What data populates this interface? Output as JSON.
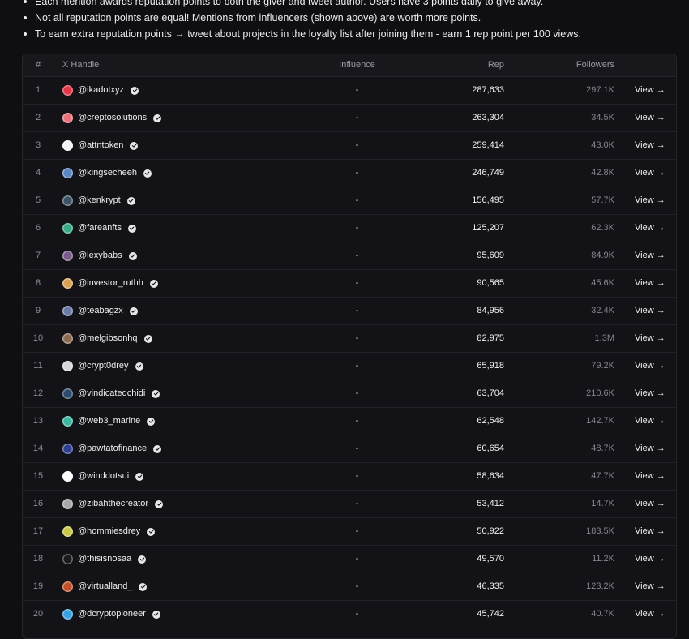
{
  "bullets": [
    "Each mention awards reputation points to both the giver and tweet author. Users have 3 points daily to give away.",
    "Not all reputation points are equal! Mentions from influencers (shown above) are worth more points.",
    "To earn extra reputation points → tweet about projects in the loyalty list after joining them - earn 1 rep point per 100 views."
  ],
  "table": {
    "headers": {
      "rank": "#",
      "handle": "X Handle",
      "influence": "Influence",
      "rep": "Rep",
      "followers": "Followers"
    },
    "view_label": "View →",
    "rows": [
      {
        "rank": "1",
        "handle": "@ikadotxyz",
        "influence": "-",
        "rep": "287,633",
        "followers": "297.1K",
        "avatar_color": "#e0384a"
      },
      {
        "rank": "2",
        "handle": "@creptosolutions",
        "influence": "-",
        "rep": "263,304",
        "followers": "34.5K",
        "avatar_color": "#e8727e"
      },
      {
        "rank": "3",
        "handle": "@attntoken",
        "influence": "-",
        "rep": "259,414",
        "followers": "43.0K",
        "avatar_color": "#f2f2f2"
      },
      {
        "rank": "4",
        "handle": "@kingsecheeh",
        "influence": "-",
        "rep": "246,749",
        "followers": "42.8K",
        "avatar_color": "#5b86c4"
      },
      {
        "rank": "5",
        "handle": "@kenkrypt",
        "influence": "-",
        "rep": "156,495",
        "followers": "57.7K",
        "avatar_color": "#3c5566"
      },
      {
        "rank": "6",
        "handle": "@fareanfts",
        "influence": "-",
        "rep": "125,207",
        "followers": "62.3K",
        "avatar_color": "#3ba888"
      },
      {
        "rank": "7",
        "handle": "@lexybabs",
        "influence": "-",
        "rep": "95,609",
        "followers": "84.9K",
        "avatar_color": "#7a5c8a"
      },
      {
        "rank": "8",
        "handle": "@investor_ruthh",
        "influence": "-",
        "rep": "90,565",
        "followers": "45.6K",
        "avatar_color": "#d9a15a"
      },
      {
        "rank": "9",
        "handle": "@teabagzx",
        "influence": "-",
        "rep": "84,956",
        "followers": "32.4K",
        "avatar_color": "#6b7da6"
      },
      {
        "rank": "10",
        "handle": "@melgibsonhq",
        "influence": "-",
        "rep": "82,975",
        "followers": "1.3M",
        "avatar_color": "#8a6a55"
      },
      {
        "rank": "11",
        "handle": "@crypt0drey",
        "influence": "-",
        "rep": "65,918",
        "followers": "79.2K",
        "avatar_color": "#d8d8d8"
      },
      {
        "rank": "12",
        "handle": "@vindicatedchidi",
        "influence": "-",
        "rep": "63,704",
        "followers": "210.6K",
        "avatar_color": "#2b4a6b"
      },
      {
        "rank": "13",
        "handle": "@web3_marine",
        "influence": "-",
        "rep": "62,548",
        "followers": "142.7K",
        "avatar_color": "#3fb6a0"
      },
      {
        "rank": "14",
        "handle": "@pawtatofinance",
        "influence": "-",
        "rep": "60,654",
        "followers": "48.7K",
        "avatar_color": "#2e3f8f"
      },
      {
        "rank": "15",
        "handle": "@winddotsui",
        "influence": "-",
        "rep": "58,634",
        "followers": "47.7K",
        "avatar_color": "#ffffff"
      },
      {
        "rank": "16",
        "handle": "@zibahthecreator",
        "influence": "-",
        "rep": "53,412",
        "followers": "14.7K",
        "avatar_color": "#a8a8a8"
      },
      {
        "rank": "17",
        "handle": "@hommiesdrey",
        "influence": "-",
        "rep": "50,922",
        "followers": "183.5K",
        "avatar_color": "#c8c84a"
      },
      {
        "rank": "18",
        "handle": "@thisisnosaa",
        "influence": "-",
        "rep": "49,570",
        "followers": "11.2K",
        "avatar_color": "#1a1a1a"
      },
      {
        "rank": "19",
        "handle": "@virtualland_",
        "influence": "-",
        "rep": "46,335",
        "followers": "123.2K",
        "avatar_color": "#c0502a"
      },
      {
        "rank": "20",
        "handle": "@dcryptopioneer",
        "influence": "-",
        "rep": "45,742",
        "followers": "40.7K",
        "avatar_color": "#3aa0e0"
      }
    ]
  }
}
